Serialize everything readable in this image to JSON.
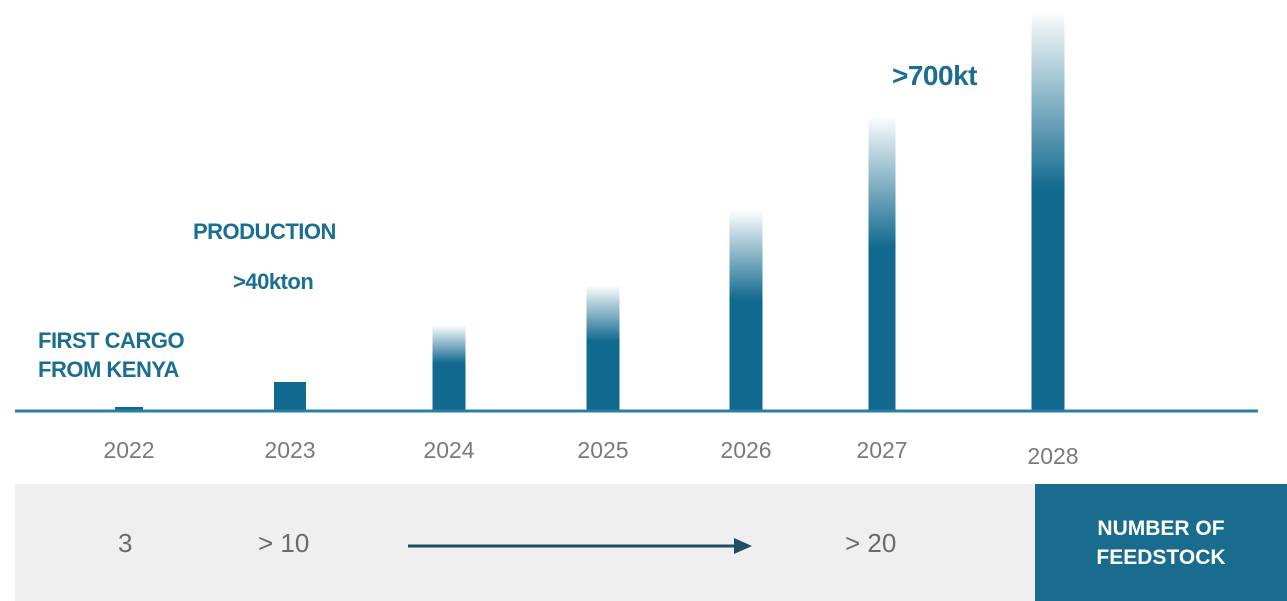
{
  "chart_data": {
    "type": "bar",
    "categories": [
      "2022",
      "2023",
      "2024",
      "2025",
      "2026",
      "2027",
      "2028"
    ],
    "values": [
      3,
      28,
      85,
      125,
      200,
      295,
      400
    ],
    "ylim": [
      0,
      400
    ],
    "xlabel": "",
    "ylabel": "",
    "title": "",
    "grid": false,
    "annotations": {
      "first_cargo_line1": "FIRST CARGO",
      "first_cargo_line2": "FROM KENYA",
      "production_label": "PRODUCTION",
      "production_value": ">40kton",
      "peak_value": ">700kt"
    }
  },
  "colors": {
    "bar": "#11698f",
    "axis": "#2a7ea3",
    "tick_text": "#7a7a7a",
    "annotation": "#1b6e93",
    "footer_bg": "#efefef",
    "footer_box": "#1a6c8f"
  },
  "feedstock": {
    "values": [
      "3",
      "> 10",
      "> 20"
    ],
    "box_line1": "NUMBER OF",
    "box_line2": "FEEDSTOCK",
    "arrow_icon": "right-arrow-icon"
  }
}
